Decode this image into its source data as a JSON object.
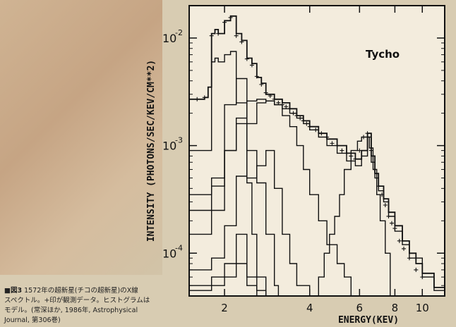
{
  "caption": {
    "figure_label": "■図3",
    "line1": "1572年の超新星(チコの超新星)のX線",
    "line2": "スペクトル。+印が観測データ。ヒストグラムは",
    "line3": "モデル。(常深ほか, 1986年, Astrophysical",
    "line4": "Journal, 第306巻)"
  },
  "chart_data": {
    "type": "line",
    "title": "",
    "annotation": "Tycho",
    "xlabel": "ENERGY(KEV)",
    "ylabel": "INTENSITY (PHOTONS/SEC/KEV/CM**2)",
    "xscale": "log",
    "yscale": "log",
    "xlim": [
      1.5,
      12
    ],
    "ylim": [
      4e-05,
      0.02
    ],
    "x_ticks": [
      2,
      4,
      6,
      8,
      10
    ],
    "y_ticks": [
      0.0001,
      0.001,
      0.01
    ],
    "y_tick_labels": [
      [
        "10",
        "-4"
      ],
      [
        "10",
        "-3"
      ],
      [
        "10",
        "-2"
      ]
    ],
    "grid": false,
    "series": [
      {
        "x": [
          1.5,
          1.6,
          1.7,
          1.75,
          1.8,
          1.85,
          1.9,
          2.0,
          2.1,
          2.2,
          2.3,
          2.4,
          2.5,
          2.6,
          2.7,
          2.8,
          3.0,
          3.2,
          3.4,
          3.6,
          3.8,
          4.0,
          4.3,
          4.6,
          5.0,
          5.4,
          5.8,
          6.1,
          6.4,
          6.6,
          6.8,
          7.0,
          7.3,
          7.6,
          8.0,
          8.5,
          9.0,
          9.5,
          10.0,
          11.0,
          12.0
        ],
        "y": [
          0.0027,
          0.0027,
          0.0028,
          0.0035,
          0.011,
          0.012,
          0.011,
          0.0145,
          0.016,
          0.011,
          0.0095,
          0.0065,
          0.0058,
          0.0043,
          0.0038,
          0.003,
          0.0027,
          0.0025,
          0.0022,
          0.0019,
          0.0017,
          0.0015,
          0.0013,
          0.00115,
          0.001,
          0.00085,
          0.00075,
          0.0009,
          0.0013,
          0.0008,
          0.00055,
          0.00042,
          0.00032,
          0.00024,
          0.00018,
          0.00013,
          0.0001,
          8e-05,
          6.5e-05,
          4.8e-05,
          4e-05
        ]
      },
      {
        "x": [
          1.5,
          1.8,
          2.0,
          2.2,
          2.4,
          2.6,
          2.8,
          3.0,
          3.2,
          3.4,
          3.6,
          3.8,
          4.0,
          4.3,
          4.6,
          5.0,
          5.4,
          5.8,
          6.1,
          6.4,
          6.6,
          6.8,
          7.0,
          7.3,
          7.6,
          8.0,
          8.5,
          9.0,
          10.0,
          11.0,
          12.0
        ],
        "y": [
          0.00025,
          0.00042,
          0.0009,
          0.0018,
          0.0026,
          0.0027,
          0.0026,
          0.0024,
          0.0022,
          0.002,
          0.0018,
          0.0016,
          0.0014,
          0.0012,
          0.001,
          0.00085,
          0.00072,
          0.00065,
          0.0008,
          0.0012,
          0.0007,
          0.0005,
          0.00038,
          0.0003,
          0.00022,
          0.00016,
          0.00012,
          9e-05,
          6e-05,
          4.5e-05,
          4e-05
        ]
      },
      {
        "x": [
          1.5,
          1.8,
          2.0,
          2.2,
          2.4,
          2.6,
          2.8,
          3.0,
          3.2,
          3.4,
          3.6,
          3.8,
          4.0,
          4.3,
          4.6,
          5.0,
          5.3,
          5.6
        ],
        "y": [
          7e-05,
          9e-05,
          0.00018,
          0.00052,
          0.0016,
          0.0025,
          0.0026,
          0.0024,
          0.0019,
          0.0015,
          0.001,
          0.0006,
          0.00035,
          0.0002,
          0.00012,
          8e-05,
          6e-05,
          4e-05
        ]
      },
      {
        "x": [
          1.5,
          1.8,
          2.0,
          2.2,
          2.4,
          2.6,
          2.8,
          3.0,
          3.2,
          3.4,
          3.6,
          3.8,
          4.0
        ],
        "y": [
          0.00015,
          0.00025,
          0.0009,
          0.0016,
          0.0005,
          0.00065,
          0.0009,
          0.0004,
          0.00015,
          8e-05,
          5e-05,
          5e-05,
          4e-05
        ]
      },
      {
        "x": [
          1.5,
          1.8,
          2.0,
          2.2,
          2.4,
          2.6,
          2.8,
          3.0,
          3.1
        ],
        "y": [
          0.00035,
          0.0005,
          0.0024,
          0.0042,
          0.0009,
          0.00045,
          0.00015,
          5e-05,
          4e-05
        ]
      },
      {
        "x": [
          1.5,
          1.75,
          1.8,
          1.85,
          1.9,
          2.0,
          2.1,
          2.2,
          2.4,
          2.5,
          2.6,
          2.8
        ],
        "y": [
          0.0009,
          0.0009,
          0.006,
          0.0065,
          0.006,
          0.007,
          0.0075,
          0.0025,
          0.00045,
          0.00015,
          6e-05,
          4e-05
        ]
      },
      {
        "x": [
          1.5,
          1.8,
          2.0,
          2.2,
          2.4,
          2.6,
          2.8,
          3.0,
          3.2
        ],
        "y": [
          5e-05,
          6e-05,
          8e-05,
          0.00015,
          6e-05,
          4.5e-05,
          4e-05,
          4e-05,
          4e-05
        ]
      },
      {
        "x": [
          1.5,
          1.8,
          2.0,
          2.2,
          2.4,
          2.6,
          2.8,
          3.0,
          3.2,
          3.4
        ],
        "y": [
          4.5e-05,
          5e-05,
          6e-05,
          8e-05,
          5e-05,
          4e-05,
          4e-05,
          4e-05,
          4e-05,
          4e-05
        ]
      },
      {
        "x": [
          4.1,
          4.3,
          4.5,
          4.7,
          4.9,
          5.1,
          5.3,
          5.6,
          5.9,
          6.1,
          6.3,
          6.5,
          6.7,
          6.9,
          7.1,
          7.4,
          7.7
        ],
        "y": [
          4e-05,
          6e-05,
          0.0001,
          0.00015,
          0.00022,
          0.00035,
          0.0006,
          0.0009,
          0.0011,
          0.0012,
          0.0012,
          0.00095,
          0.0006,
          0.00035,
          0.0002,
          0.0001,
          4e-05
        ]
      }
    ],
    "observed": {
      "x": [
        1.6,
        1.7,
        1.8,
        1.9,
        2.0,
        2.1,
        2.2,
        2.3,
        2.4,
        2.5,
        2.6,
        2.7,
        2.8,
        2.9,
        3.0,
        3.1,
        3.2,
        3.3,
        3.4,
        3.5,
        3.6,
        3.7,
        3.8,
        3.9,
        4.0,
        4.2,
        4.4,
        4.6,
        4.8,
        5.0,
        5.2,
        5.4,
        5.6,
        5.8,
        6.0,
        6.2,
        6.4,
        6.6,
        6.8,
        7.0,
        7.2,
        7.4,
        7.6,
        7.8,
        8.0,
        8.3,
        8.6,
        9.0,
        9.5,
        10.0
      ],
      "y": [
        0.0027,
        0.0028,
        0.0105,
        0.011,
        0.014,
        0.0155,
        0.0105,
        0.0092,
        0.0064,
        0.0056,
        0.0044,
        0.0037,
        0.0031,
        0.0029,
        0.0027,
        0.0025,
        0.0024,
        0.0023,
        0.0022,
        0.002,
        0.0019,
        0.0018,
        0.0017,
        0.0016,
        0.0015,
        0.0014,
        0.0013,
        0.0012,
        0.00105,
        0.001,
        0.0009,
        0.00085,
        0.0008,
        0.00075,
        0.0009,
        0.0012,
        0.0013,
        0.0009,
        0.0006,
        0.00042,
        0.00035,
        0.00028,
        0.00022,
        0.00019,
        0.00017,
        0.00013,
        0.00011,
        9e-05,
        7e-05,
        6e-05
      ]
    }
  }
}
